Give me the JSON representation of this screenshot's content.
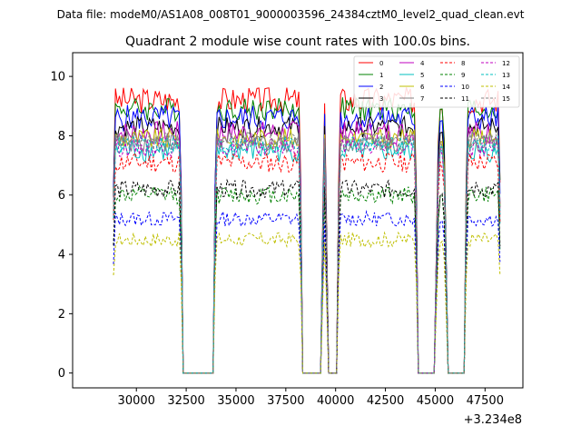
{
  "suptitle": "Data file: modeM0/AS1A08_008T01_9000003596_24384cztM0_level2_quad_clean.evt",
  "chart_data": {
    "type": "line",
    "title": "Quadrant 2 module wise count rates with 100.0s bins.",
    "xlabel": "",
    "ylabel": "",
    "x_offset_label": "+3.234e8",
    "xlim": [
      26800,
      49400
    ],
    "ylim": [
      -0.5,
      10.8
    ],
    "x_ticks": [
      30000,
      32500,
      35000,
      37500,
      40000,
      42500,
      45000,
      47500
    ],
    "x_tick_labels": [
      "30000",
      "32500",
      "35000",
      "37500",
      "40000",
      "42500",
      "45000",
      "47500"
    ],
    "y_ticks": [
      0,
      2,
      4,
      6,
      8,
      10
    ],
    "y_tick_labels": [
      "0",
      "2",
      "4",
      "6",
      "8",
      "10"
    ],
    "legend_location": "upper right",
    "segments": [
      {
        "start": 28850,
        "end": 32250
      },
      {
        "start": 33950,
        "end": 38250
      },
      {
        "start": 39350,
        "end": 39550
      },
      {
        "start": 40150,
        "end": 44050
      },
      {
        "start": 45050,
        "end": 45550
      },
      {
        "start": 46550,
        "end": 48250
      }
    ],
    "gaps": [
      {
        "start": 32350,
        "end": 33850
      },
      {
        "start": 38350,
        "end": 39250
      },
      {
        "start": 39650,
        "end": 40050
      },
      {
        "start": 44150,
        "end": 44950
      },
      {
        "start": 45650,
        "end": 46450
      }
    ],
    "series": [
      {
        "name": "0",
        "color": "#ff0000",
        "dashed": false,
        "level": 9.2,
        "noise": 0.45
      },
      {
        "name": "1",
        "color": "#008000",
        "dashed": false,
        "level": 8.9,
        "noise": 0.4
      },
      {
        "name": "2",
        "color": "#0000ff",
        "dashed": false,
        "level": 8.6,
        "noise": 0.45
      },
      {
        "name": "3",
        "color": "#000000",
        "dashed": false,
        "level": 8.3,
        "noise": 0.35
      },
      {
        "name": "4",
        "color": "#bf00bf",
        "dashed": false,
        "level": 8.1,
        "noise": 0.4
      },
      {
        "name": "5",
        "color": "#00bfbf",
        "dashed": false,
        "level": 7.5,
        "noise": 0.4
      },
      {
        "name": "6",
        "color": "#bfbf00",
        "dashed": false,
        "level": 7.9,
        "noise": 0.35
      },
      {
        "name": "7",
        "color": "#808080",
        "dashed": false,
        "level": 7.8,
        "noise": 0.35
      },
      {
        "name": "8",
        "color": "#ff0000",
        "dashed": true,
        "level": 7.1,
        "noise": 0.35
      },
      {
        "name": "9",
        "color": "#008000",
        "dashed": true,
        "level": 6.0,
        "noise": 0.3
      },
      {
        "name": "10",
        "color": "#0000ff",
        "dashed": true,
        "level": 5.2,
        "noise": 0.25
      },
      {
        "name": "11",
        "color": "#000000",
        "dashed": true,
        "level": 6.2,
        "noise": 0.3
      },
      {
        "name": "12",
        "color": "#bf00bf",
        "dashed": true,
        "level": 7.6,
        "noise": 0.3
      },
      {
        "name": "13",
        "color": "#00bfbf",
        "dashed": true,
        "level": 7.7,
        "noise": 0.3
      },
      {
        "name": "14",
        "color": "#bfbf00",
        "dashed": true,
        "level": 4.5,
        "noise": 0.25
      },
      {
        "name": "15",
        "color": "#808080",
        "dashed": true,
        "level": 7.8,
        "noise": 0.3
      }
    ]
  }
}
